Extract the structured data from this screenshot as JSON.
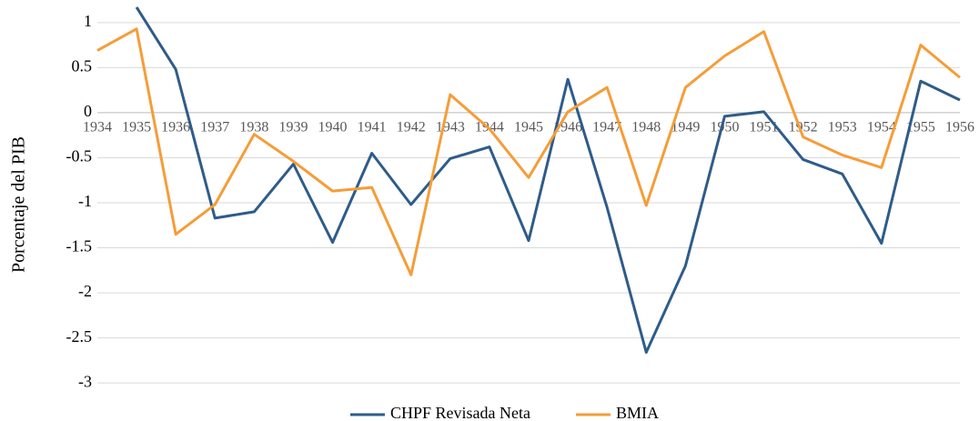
{
  "chart_data": {
    "type": "line",
    "y_label": "Porcentaje del PIB",
    "categories": [
      "1934",
      "1935",
      "1936",
      "1937",
      "1938",
      "1939",
      "1940",
      "1941",
      "1942",
      "1943",
      "1944",
      "1945",
      "1946",
      "1947",
      "1948",
      "1949",
      "1950",
      "1951",
      "1952",
      "1953",
      "1954",
      "1955",
      "1956"
    ],
    "series": [
      {
        "name": "CHPF Revisada Neta",
        "color": "#2e5c8a",
        "values": [
          null,
          1.17,
          0.48,
          -1.17,
          -1.1,
          -0.57,
          -1.44,
          -0.45,
          -1.02,
          -0.51,
          -0.38,
          -1.42,
          0.37,
          -1.05,
          -2.66,
          -1.7,
          -0.04,
          0.01,
          -0.52,
          -0.68,
          -1.45,
          0.35,
          0.14
        ]
      },
      {
        "name": "BMIA",
        "color": "#f59d38",
        "values": [
          0.69,
          0.93,
          -1.35,
          -1.02,
          -0.24,
          -0.54,
          -0.87,
          -0.83,
          -1.8,
          0.2,
          -0.18,
          -0.72,
          0.01,
          0.28,
          -1.03,
          0.28,
          0.63,
          0.9,
          -0.27,
          -0.47,
          -0.61,
          0.75,
          0.39
        ]
      }
    ],
    "ylim": [
      -3.2,
      1.2
    ],
    "yticks": [
      1,
      0.5,
      0,
      -0.5,
      -1,
      -1.5,
      -2,
      -2.5,
      -3
    ],
    "grid": true,
    "legend": "bottom"
  }
}
